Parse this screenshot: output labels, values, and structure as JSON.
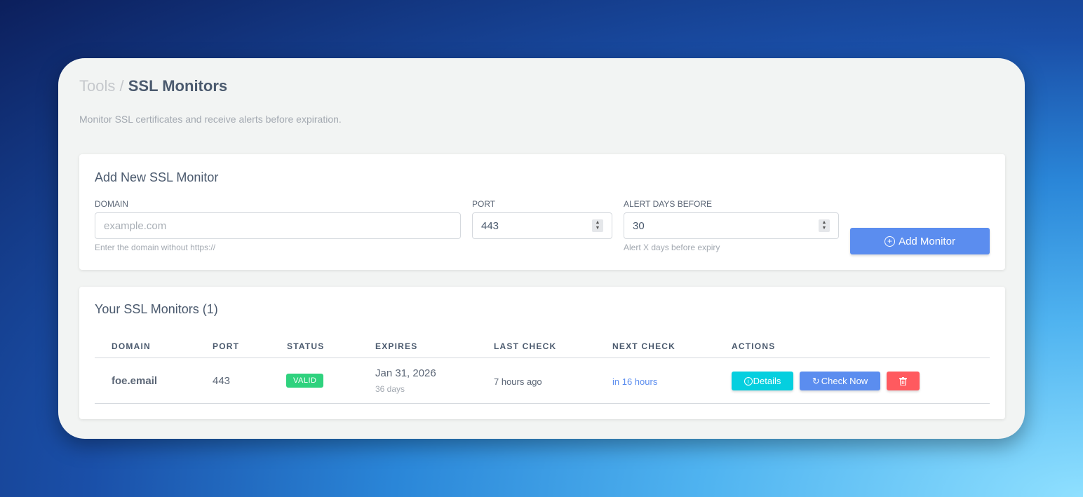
{
  "breadcrumb": {
    "parent": "Tools",
    "separator": "/",
    "current": "SSL Monitors"
  },
  "subtitle": "Monitor SSL certificates and receive alerts before expiration.",
  "add_form": {
    "title": "Add New SSL Monitor",
    "domain": {
      "label": "DOMAIN",
      "placeholder": "example.com",
      "hint": "Enter the domain without https://"
    },
    "port": {
      "label": "PORT",
      "value": "443"
    },
    "alert_days": {
      "label": "ALERT DAYS BEFORE",
      "value": "30",
      "hint": "Alert X days before expiry"
    },
    "submit_label": "Add Monitor"
  },
  "monitors": {
    "title": "Your SSL Monitors (1)",
    "columns": [
      "DOMAIN",
      "PORT",
      "STATUS",
      "EXPIRES",
      "LAST CHECK",
      "NEXT CHECK",
      "ACTIONS"
    ],
    "rows": [
      {
        "domain": "foe.email",
        "port": "443",
        "status": "VALID",
        "expires": "Jan 31, 2026",
        "expires_in": "36 days",
        "last_check": "7 hours ago",
        "next_check": "in 16 hours",
        "details_label": "Details",
        "check_label": "Check Now"
      }
    ]
  },
  "colors": {
    "accent": "#5b8def",
    "info": "#05cfdf",
    "danger": "#ff5a5f",
    "success": "#2fd27e"
  }
}
